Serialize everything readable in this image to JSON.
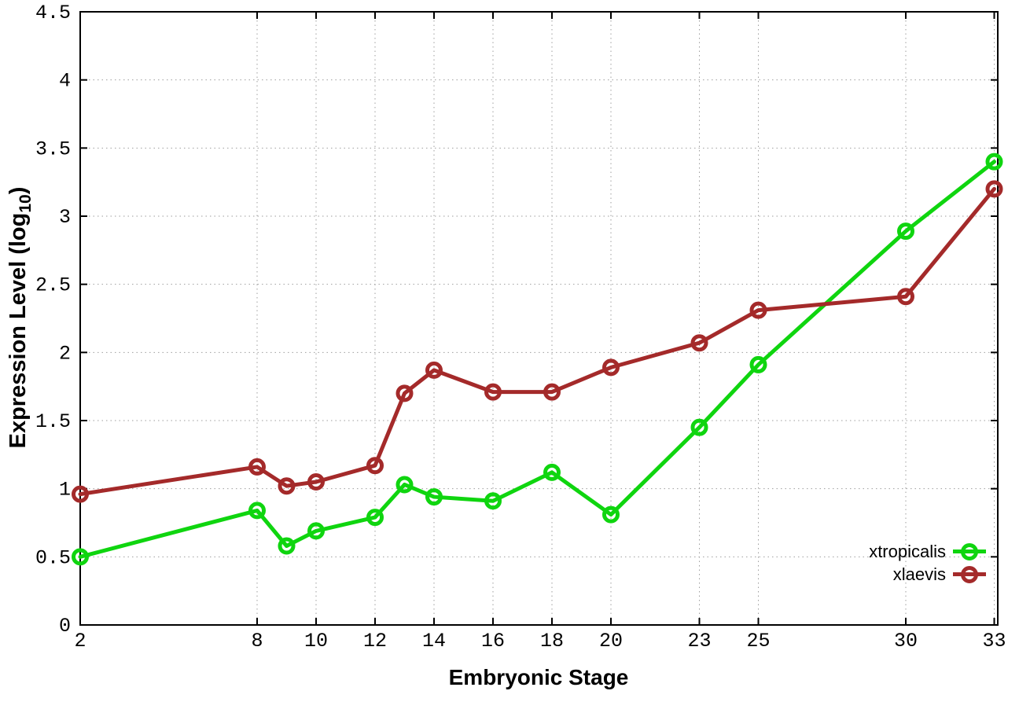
{
  "chart_data": {
    "type": "line",
    "title": "",
    "xlabel": "Embryonic Stage",
    "ylabel": "Expression Level (log10)",
    "ylabel_parts": {
      "pre": "Expression Level (log",
      "sub": "10",
      "post": ")"
    },
    "xlim": [
      2,
      33.12
    ],
    "ylim": [
      0,
      4.5
    ],
    "grid": true,
    "legend_position": "inside bottom-right",
    "x_tick_values": [
      2,
      8,
      10,
      12,
      14,
      16,
      18,
      20,
      23,
      25,
      30,
      33
    ],
    "x_tick_labels": [
      "2",
      "8",
      "10",
      "12",
      "14",
      "16",
      "18",
      "20",
      "23",
      "25",
      "30",
      "33"
    ],
    "y_tick_values": [
      0,
      0.5,
      1,
      1.5,
      2,
      2.5,
      3,
      3.5,
      4,
      4.5
    ],
    "y_tick_labels": [
      "0",
      "0.5",
      "1",
      "1.5",
      "2",
      "2.5",
      "3",
      "3.5",
      "4",
      "4.5"
    ],
    "x": [
      2,
      8,
      9,
      10,
      12,
      13,
      14,
      16,
      18,
      20,
      23,
      25,
      30,
      33
    ],
    "series": [
      {
        "name": "xtropicalis",
        "color": "#0fd50f",
        "values": [
          0.5,
          0.84,
          0.58,
          0.69,
          0.79,
          1.03,
          0.94,
          0.91,
          1.12,
          0.81,
          1.45,
          1.91,
          2.89,
          3.4
        ]
      },
      {
        "name": "xlaevis",
        "color": "#a42a2a",
        "values": [
          0.96,
          1.16,
          1.02,
          1.05,
          1.17,
          1.7,
          1.87,
          1.71,
          1.71,
          1.89,
          2.07,
          2.31,
          2.41,
          3.2
        ]
      }
    ],
    "colors": {
      "grid": "#9e9e9e",
      "border": "#000000",
      "background": "#ffffff"
    }
  }
}
